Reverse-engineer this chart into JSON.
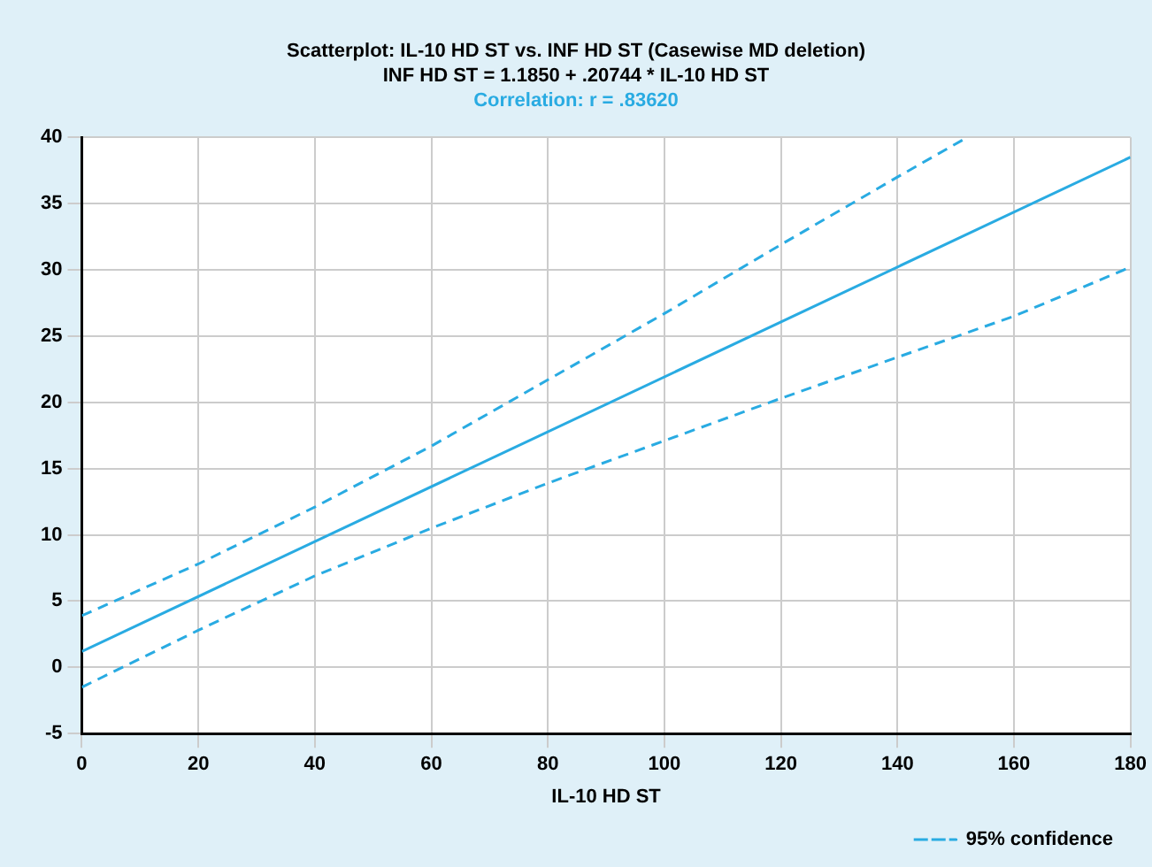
{
  "chart_data": {
    "type": "line",
    "title": "Scatterplot: IL-10 HD ST vs. INF HD ST (Casewise MD deletion)",
    "subtitle": "INF HD ST = 1.1850 + .20744 * IL-10 HD ST",
    "annotations": [
      "Correlation: r = .83620"
    ],
    "xlabel": "IL-10 HD ST",
    "xlim": [
      0,
      180
    ],
    "xticks": [
      0,
      20,
      40,
      60,
      80,
      100,
      120,
      140,
      160,
      180
    ],
    "ylim": [
      -5,
      40
    ],
    "yticks": [
      -5,
      0,
      5,
      10,
      15,
      20,
      25,
      30,
      35,
      40
    ],
    "grid": true,
    "legend": "bottom right",
    "marker": "none",
    "series": [
      {
        "color": "#29abe2",
        "line_style": "solid",
        "x": [
          0,
          180
        ],
        "values": [
          1.2,
          38.5
        ]
      },
      {
        "name": "95% confidence",
        "color": "#29abe2",
        "line_style": "dashed",
        "x": [
          0,
          20,
          40,
          60,
          80,
          100,
          120,
          140,
          152
        ],
        "values": [
          3.9,
          7.8,
          12.1,
          16.7,
          21.7,
          26.7,
          31.9,
          37.0,
          40.0
        ]
      },
      {
        "color": "#29abe2",
        "line_style": "dashed",
        "x": [
          0,
          20,
          40,
          60,
          80,
          100,
          120,
          140,
          160,
          180
        ],
        "values": [
          -1.5,
          2.8,
          6.9,
          10.5,
          13.9,
          17.1,
          20.3,
          23.4,
          26.5,
          30.2
        ]
      }
    ]
  }
}
